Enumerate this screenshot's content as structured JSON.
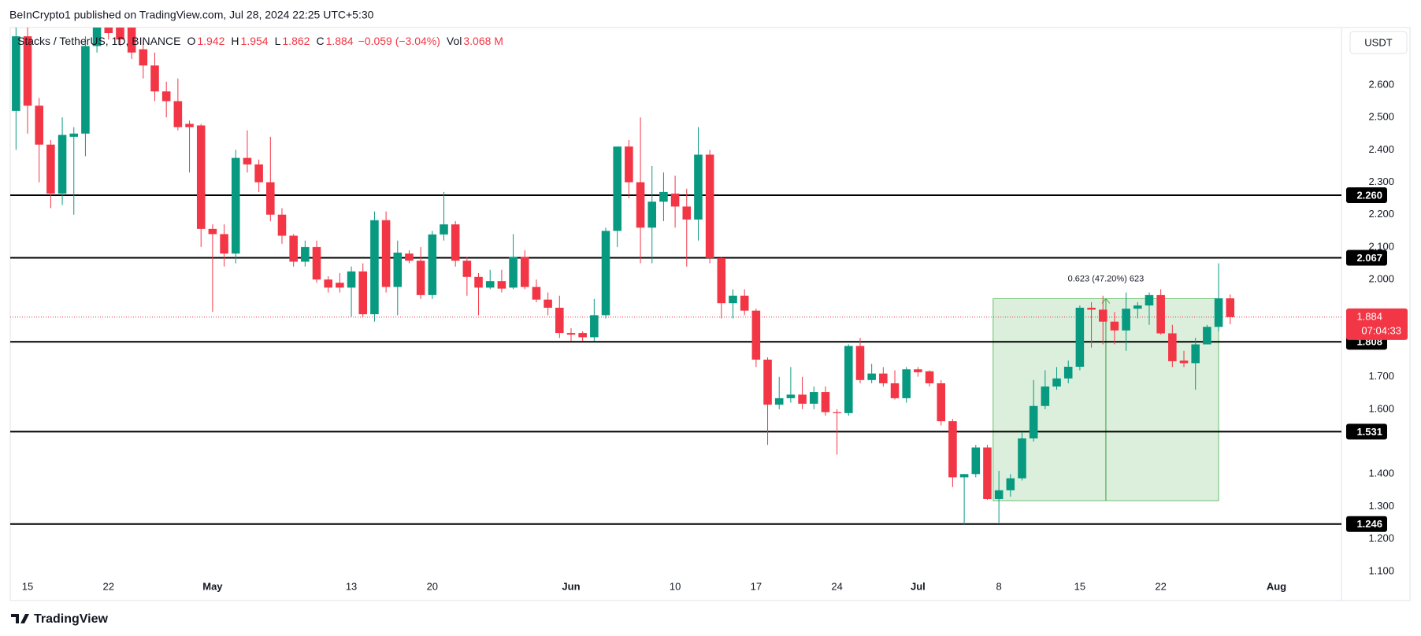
{
  "published": "BeInCrypto1 published on TradingView.com, Jul 28, 2024 22:25 UTC+5:30",
  "footer": "TradingView",
  "chart_data": {
    "type": "candlestick",
    "symbol": "Stacks / TetherUS, 1D, BINANCE",
    "ohlc_labels": [
      "O",
      "H",
      "L",
      "C"
    ],
    "change": "−0.059 (−3.04%)",
    "volume_label": "Vol",
    "volume": "3.068 M",
    "currency": "USDT",
    "up_color": "#089981",
    "down_color": "#f23645",
    "x": [
      "Apr 14",
      "Apr 15",
      "Apr 16",
      "Apr 17",
      "Apr 18",
      "Apr 19",
      "Apr 20",
      "Apr 21",
      "Apr 22",
      "Apr 23",
      "Apr 24",
      "Apr 25",
      "Apr 26",
      "Apr 27",
      "Apr 28",
      "Apr 29",
      "Apr 30",
      "May 1",
      "May 2",
      "May 3",
      "May 4",
      "May 5",
      "May 6",
      "May 7",
      "May 8",
      "May 9",
      "May 10",
      "May 11",
      "May 12",
      "May 13",
      "May 14",
      "May 15",
      "May 16",
      "May 17",
      "May 18",
      "May 19",
      "May 20",
      "May 21",
      "May 22",
      "May 23",
      "May 24",
      "May 25",
      "May 26",
      "May 27",
      "May 28",
      "May 29",
      "May 30",
      "May 31",
      "Jun 1",
      "Jun 2",
      "Jun 3",
      "Jun 4",
      "Jun 5",
      "Jun 6",
      "Jun 7",
      "Jun 8",
      "Jun 9",
      "Jun 10",
      "Jun 11",
      "Jun 12",
      "Jun 13",
      "Jun 14",
      "Jun 15",
      "Jun 16",
      "Jun 17",
      "Jun 18",
      "Jun 19",
      "Jun 20",
      "Jun 21",
      "Jun 22",
      "Jun 23",
      "Jun 24",
      "Jun 25",
      "Jun 26",
      "Jun 27",
      "Jun 28",
      "Jun 29",
      "Jun 30",
      "Jul 1",
      "Jul 2",
      "Jul 3",
      "Jul 4",
      "Jul 5",
      "Jul 6",
      "Jul 7",
      "Jul 8",
      "Jul 9",
      "Jul 10",
      "Jul 11",
      "Jul 12",
      "Jul 13",
      "Jul 14",
      "Jul 15",
      "Jul 16",
      "Jul 17",
      "Jul 18",
      "Jul 19",
      "Jul 20",
      "Jul 21",
      "Jul 22",
      "Jul 23",
      "Jul 24",
      "Jul 25",
      "Jul 26",
      "Jul 27",
      "Jul 28"
    ],
    "open": [
      2.52,
      2.75,
      2.536,
      2.416,
      2.265,
      2.44,
      2.45,
      2.72,
      2.79,
      2.78,
      2.78,
      2.71,
      2.66,
      2.58,
      2.55,
      2.48,
      2.475,
      2.156,
      2.14,
      2.08,
      2.375,
      2.355,
      2.3,
      2.2,
      2.135,
      2.055,
      2.1,
      2.0,
      1.99,
      1.975,
      2.025,
      1.893,
      2.183,
      1.977,
      2.08,
      2.058,
      1.952,
      2.139,
      2.17,
      2.058,
      2.008,
      1.975,
      1.995,
      1.975,
      2.07,
      1.977,
      1.938,
      1.913,
      1.835,
      1.835,
      1.822,
      1.89,
      2.15,
      2.41,
      2.3,
      2.16,
      2.24,
      2.265,
      2.225,
      2.185,
      2.385,
      2.066,
      1.927,
      1.95,
      1.904,
      1.753,
      1.614,
      1.634,
      1.645,
      1.617,
      1.653,
      1.591,
      1.588,
      1.795,
      1.69,
      1.71,
      1.68,
      1.634,
      1.723,
      1.717,
      1.68,
      1.563,
      1.39,
      1.4,
      1.482,
      1.323,
      1.35,
      1.387,
      1.51,
      1.61,
      1.67,
      1.695,
      1.731,
      1.913,
      1.907,
      1.87,
      1.843,
      1.91,
      1.92,
      1.952,
      1.834,
      1.75,
      1.742,
      1.8,
      1.854,
      1.942
    ],
    "high": [
      2.78,
      2.78,
      2.56,
      2.43,
      2.5,
      2.47,
      2.75,
      2.82,
      2.82,
      2.82,
      2.8,
      2.74,
      2.7,
      2.61,
      2.62,
      2.49,
      2.48,
      2.17,
      2.17,
      2.4,
      2.46,
      2.37,
      2.44,
      2.22,
      2.14,
      2.12,
      2.12,
      2.01,
      2.02,
      2.04,
      2.05,
      2.21,
      2.21,
      2.12,
      2.09,
      2.1,
      2.15,
      2.27,
      2.18,
      2.07,
      2.02,
      2.03,
      2.03,
      2.14,
      2.09,
      2.0,
      1.96,
      1.95,
      1.85,
      1.84,
      1.94,
      2.16,
      2.41,
      2.43,
      2.5,
      2.35,
      2.33,
      2.32,
      2.28,
      2.47,
      2.4,
      2.07,
      1.97,
      1.97,
      1.91,
      1.76,
      1.7,
      1.73,
      1.7,
      1.67,
      1.67,
      1.6,
      1.8,
      1.82,
      1.74,
      1.73,
      1.72,
      1.73,
      1.73,
      1.72,
      1.69,
      1.57,
      1.4,
      1.49,
      1.49,
      1.41,
      1.4,
      1.53,
      1.69,
      1.72,
      1.73,
      1.75,
      1.92,
      1.93,
      1.95,
      1.9,
      1.96,
      1.93,
      1.96,
      1.97,
      1.86,
      1.78,
      1.82,
      1.86,
      2.05,
      1.954
    ],
    "low": [
      2.4,
      2.45,
      2.3,
      2.22,
      2.23,
      2.2,
      2.38,
      2.7,
      2.74,
      2.72,
      2.68,
      2.62,
      2.55,
      2.5,
      2.46,
      2.33,
      2.1,
      1.9,
      2.04,
      2.05,
      2.33,
      2.27,
      2.18,
      2.11,
      2.04,
      2.04,
      1.99,
      1.96,
      1.96,
      1.885,
      1.885,
      1.87,
      1.96,
      1.89,
      2.05,
      1.94,
      1.94,
      2.12,
      2.04,
      1.95,
      1.89,
      1.97,
      1.96,
      1.97,
      1.97,
      1.93,
      1.89,
      1.82,
      1.81,
      1.81,
      1.81,
      1.88,
      2.1,
      2.25,
      2.05,
      2.05,
      2.18,
      2.16,
      2.04,
      2.12,
      2.05,
      1.88,
      1.88,
      1.89,
      1.73,
      1.49,
      1.6,
      1.62,
      1.6,
      1.6,
      1.58,
      1.46,
      1.58,
      1.68,
      1.68,
      1.67,
      1.63,
      1.62,
      1.7,
      1.67,
      1.55,
      1.36,
      1.245,
      1.39,
      1.32,
      1.25,
      1.33,
      1.38,
      1.5,
      1.6,
      1.66,
      1.68,
      1.72,
      1.79,
      1.8,
      1.8,
      1.78,
      1.88,
      1.86,
      1.83,
      1.73,
      1.73,
      1.66,
      1.8,
      1.84,
      1.862
    ],
    "close": [
      2.75,
      2.536,
      2.416,
      2.265,
      2.446,
      2.45,
      2.72,
      2.78,
      2.76,
      2.74,
      2.7,
      2.66,
      2.58,
      2.55,
      2.47,
      2.47,
      2.156,
      2.14,
      2.08,
      2.375,
      2.355,
      2.3,
      2.2,
      2.135,
      2.055,
      2.1,
      2.0,
      1.975,
      1.975,
      2.025,
      1.893,
      2.183,
      1.977,
      2.083,
      2.058,
      1.952,
      2.139,
      2.17,
      2.058,
      2.008,
      1.975,
      1.995,
      1.972,
      2.07,
      1.977,
      1.938,
      1.913,
      1.835,
      1.83,
      1.822,
      1.89,
      2.15,
      2.41,
      2.3,
      2.16,
      2.24,
      2.27,
      2.225,
      2.185,
      2.385,
      2.066,
      1.927,
      1.95,
      1.904,
      1.753,
      1.614,
      1.634,
      1.645,
      1.617,
      1.653,
      1.591,
      1.588,
      1.795,
      1.69,
      1.71,
      1.68,
      1.634,
      1.723,
      1.714,
      1.68,
      1.563,
      1.39,
      1.4,
      1.482,
      1.323,
      1.35,
      1.387,
      1.51,
      1.61,
      1.67,
      1.695,
      1.731,
      1.913,
      1.907,
      1.87,
      1.843,
      1.91,
      1.92,
      1.952,
      1.834,
      1.748,
      1.742,
      1.8,
      1.854,
      1.942,
      1.884
    ],
    "ylim": [
      1.09,
      2.777
    ],
    "yticks": [
      {
        "value": 2.6,
        "label": "2.600"
      },
      {
        "value": 2.5,
        "label": "2.500"
      },
      {
        "value": 2.4,
        "label": "2.400"
      },
      {
        "value": 2.3,
        "label": "2.300"
      },
      {
        "value": 2.2,
        "label": "2.200"
      },
      {
        "value": 2.1,
        "label": "2.100"
      },
      {
        "value": 2.0,
        "label": "2.000"
      },
      {
        "value": 1.7,
        "label": "1.700"
      },
      {
        "value": 1.6,
        "label": "1.600"
      },
      {
        "value": 1.4,
        "label": "1.400"
      },
      {
        "value": 1.3,
        "label": "1.300"
      },
      {
        "value": 1.2,
        "label": "1.200"
      },
      {
        "value": 1.1,
        "label": "1.100"
      }
    ],
    "xticks": [
      {
        "value": "Apr 15",
        "label": "15"
      },
      {
        "value": "Apr 22",
        "label": "22"
      },
      {
        "value": "May 1",
        "label": "May"
      },
      {
        "value": "May 13",
        "label": "13"
      },
      {
        "value": "May 20",
        "label": "20"
      },
      {
        "value": "Jun 1",
        "label": "Jun"
      },
      {
        "value": "Jun 10",
        "label": "10"
      },
      {
        "value": "Jun 17",
        "label": "17"
      },
      {
        "value": "Jun 24",
        "label": "24"
      },
      {
        "value": "Jul 1",
        "label": "Jul"
      },
      {
        "value": "Jul 8",
        "label": "8"
      },
      {
        "value": "Jul 15",
        "label": "15"
      },
      {
        "value": "Jul 22",
        "label": "22"
      },
      {
        "value": "Aug 1",
        "label": "Aug"
      }
    ],
    "grid": false,
    "levels": [
      {
        "value": 2.26,
        "label": "2.260"
      },
      {
        "value": 2.067,
        "label": "2.067"
      },
      {
        "value": 1.808,
        "label": "1.808"
      },
      {
        "value": 1.531,
        "label": "1.531"
      },
      {
        "value": 1.246,
        "label": "1.246"
      }
    ],
    "last_price": {
      "value": 1.884,
      "label": "1.884",
      "countdown": "07:04:33"
    },
    "measure": {
      "from": "Jul 8",
      "to": "Jul 27",
      "low": 1.318,
      "high": 1.941,
      "label": "0.623 (47.20%) 623",
      "color": "#4caf50"
    }
  }
}
